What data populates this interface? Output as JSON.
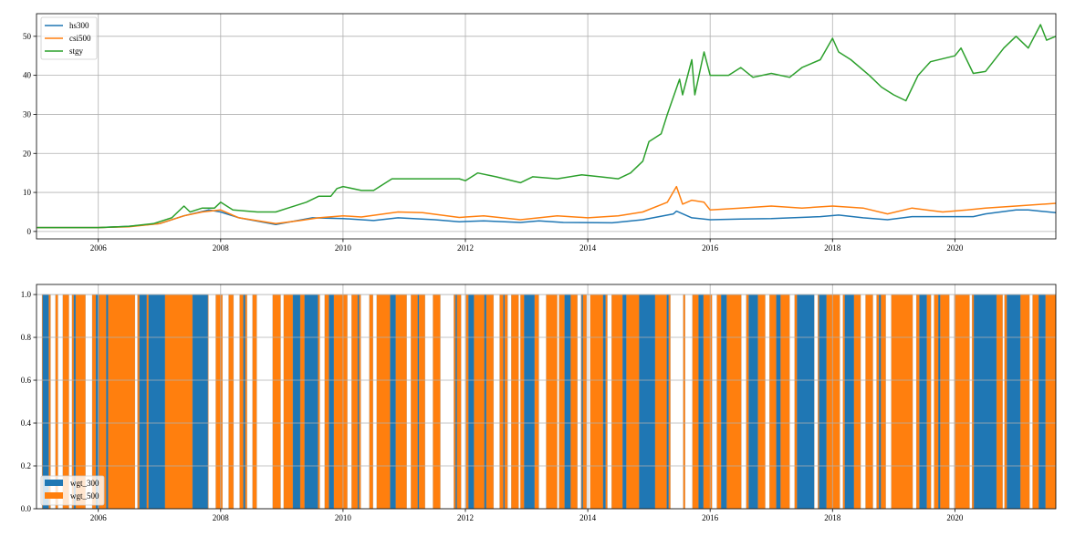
{
  "colors": {
    "hs300": "#1f77b4",
    "csi500": "#ff7f0e",
    "stgy": "#2ca02c",
    "grid": "#b0b0b0"
  },
  "chart_data": [
    {
      "type": "line",
      "title": "",
      "xlabel": "",
      "ylabel": "",
      "xlim": [
        2004.99,
        2021.65
      ],
      "ylim": [
        -1.9,
        55.8
      ],
      "grid": true,
      "legend_placement": "upper-left",
      "xticks": [
        "2006",
        "2008",
        "2010",
        "2012",
        "2014",
        "2016",
        "2018",
        "2020"
      ],
      "yticks": [
        "0",
        "10",
        "20",
        "30",
        "40",
        "50"
      ],
      "series": [
        {
          "name": "hs300",
          "color": "#1f77b4",
          "x": [
            2005,
            2006,
            2006.5,
            2007,
            2007.4,
            2007.8,
            2008,
            2008.3,
            2008.9,
            2009.5,
            2010,
            2010.5,
            2010.9,
            2011.5,
            2011.9,
            2012.3,
            2012.9,
            2013.2,
            2013.6,
            2014.4,
            2014.9,
            2015.4,
            2015.45,
            2015.7,
            2016,
            2016.5,
            2017,
            2017.8,
            2018.1,
            2018.5,
            2018.9,
            2019.3,
            2019.8,
            2020.3,
            2020.5,
            2021,
            2021.2,
            2021.4,
            2021.65
          ],
          "y": [
            1,
            1,
            1.3,
            2,
            4,
            5.5,
            5,
            3.5,
            1.8,
            3.5,
            3.3,
            2.8,
            3.5,
            3,
            2.5,
            2.7,
            2.3,
            2.7,
            2.3,
            2.2,
            3,
            4.5,
            5.2,
            3.5,
            3,
            3.2,
            3.3,
            3.8,
            4.2,
            3.5,
            3,
            3.8,
            3.8,
            3.8,
            4.5,
            5.5,
            5.5,
            5.2,
            4.8
          ]
        },
        {
          "name": "csi500",
          "color": "#ff7f0e",
          "x": [
            2005,
            2006,
            2006.5,
            2007,
            2007.4,
            2007.7,
            2008,
            2008.3,
            2008.9,
            2009.3,
            2009.6,
            2010,
            2010.3,
            2010.9,
            2011.3,
            2011.9,
            2012.3,
            2012.9,
            2013.5,
            2014,
            2014.5,
            2014.9,
            2015.3,
            2015.45,
            2015.55,
            2015.7,
            2015.9,
            2016,
            2016.5,
            2017,
            2017.5,
            2018,
            2018.5,
            2018.9,
            2019.3,
            2019.8,
            2020.2,
            2020.5,
            2021,
            2021.65
          ],
          "y": [
            1,
            1,
            1.2,
            2,
            4,
            5,
            5.5,
            3.5,
            2,
            2.8,
            3.5,
            4,
            3.7,
            5,
            4.8,
            3.6,
            4,
            3,
            4,
            3.5,
            4,
            5,
            7.5,
            11.5,
            7,
            8,
            7.5,
            5.5,
            6,
            6.5,
            6,
            6.5,
            6,
            4.5,
            6,
            5,
            5.5,
            6,
            6.5,
            7.2
          ]
        },
        {
          "name": "stgy",
          "color": "#2ca02c",
          "x": [
            2005,
            2006,
            2006.5,
            2006.9,
            2007.2,
            2007.4,
            2007.5,
            2007.7,
            2007.9,
            2008,
            2008.2,
            2008.6,
            2008.9,
            2009.1,
            2009.4,
            2009.6,
            2009.8,
            2009.9,
            2010,
            2010.3,
            2010.5,
            2010.8,
            2011,
            2011.4,
            2011.9,
            2012,
            2012.2,
            2012.5,
            2012.9,
            2013.1,
            2013.5,
            2013.9,
            2014.2,
            2014.5,
            2014.7,
            2014.9,
            2015,
            2015.2,
            2015.3,
            2015.5,
            2015.55,
            2015.7,
            2015.75,
            2015.9,
            2016,
            2016.3,
            2016.5,
            2016.7,
            2017,
            2017.3,
            2017.5,
            2017.8,
            2018,
            2018.1,
            2018.3,
            2018.6,
            2018.8,
            2019,
            2019.2,
            2019.4,
            2019.6,
            2020,
            2020.1,
            2020.3,
            2020.5,
            2020.8,
            2021,
            2021.2,
            2021.4,
            2021.5,
            2021.65
          ],
          "y": [
            1,
            1,
            1.3,
            2,
            3.5,
            6.5,
            5,
            6,
            6,
            7.5,
            5.5,
            5,
            5,
            6,
            7.5,
            9,
            9,
            11,
            11.5,
            10.5,
            10.5,
            13.5,
            13.5,
            13.5,
            13.5,
            13,
            15,
            14,
            12.5,
            14,
            13.5,
            14.5,
            14,
            13.5,
            15,
            18,
            23,
            25,
            30,
            39,
            35,
            44,
            35,
            46,
            40,
            40,
            42,
            39.5,
            40.5,
            39.5,
            42,
            44,
            49.5,
            46,
            44,
            40,
            37,
            35,
            33.5,
            40,
            43.5,
            45,
            47,
            40.5,
            41,
            47,
            50,
            47,
            53,
            49,
            50
          ]
        }
      ]
    },
    {
      "type": "bar",
      "stacked": true,
      "title": "",
      "xlabel": "",
      "ylabel": "",
      "xlim": [
        2004.99,
        2021.65
      ],
      "ylim": [
        0,
        1.047
      ],
      "grid": true,
      "legend_placement": "lower-left",
      "xticks": [
        "2006",
        "2008",
        "2010",
        "2012",
        "2014",
        "2016",
        "2018",
        "2020"
      ],
      "yticks": [
        "0.0",
        "0.2",
        "0.4",
        "0.6",
        "0.8",
        "1.0"
      ],
      "series": [
        {
          "name": "wgt_300",
          "color": "#1f77b4"
        },
        {
          "name": "wgt_500",
          "color": "#ff7f0e"
        }
      ],
      "invested_periods": [
        [
          2005.08,
          2005.22
        ],
        [
          2005.3,
          2005.34
        ],
        [
          2005.42,
          2005.52
        ],
        [
          2005.57,
          2005.79
        ],
        [
          2005.9,
          2006.6
        ],
        [
          2006.64,
          2007.8
        ],
        [
          2007.92,
          2008.03
        ],
        [
          2008.13,
          2008.21
        ],
        [
          2008.31,
          2008.43
        ],
        [
          2008.52,
          2008.59
        ],
        [
          2008.85,
          2008.98
        ],
        [
          2009.03,
          2009.62
        ],
        [
          2009.7,
          2010.07
        ],
        [
          2010.14,
          2010.29
        ],
        [
          2010.43,
          2010.49
        ],
        [
          2010.55,
          2011.04
        ],
        [
          2011.11,
          2011.34
        ],
        [
          2011.47,
          2011.59
        ],
        [
          2011.81,
          2011.93
        ],
        [
          2012.01,
          2012.46
        ],
        [
          2012.56,
          2012.69
        ],
        [
          2012.75,
          2012.87
        ],
        [
          2012.9,
          2013.2
        ],
        [
          2013.32,
          2013.5
        ],
        [
          2013.53,
          2013.83
        ],
        [
          2013.89,
          2013.98
        ],
        [
          2014.04,
          2014.32
        ],
        [
          2014.39,
          2015.35
        ],
        [
          2015.56,
          2015.59
        ],
        [
          2015.71,
          2016.03
        ],
        [
          2016.11,
          2016.51
        ],
        [
          2016.59,
          2016.9
        ],
        [
          2016.97,
          2017.3
        ],
        [
          2017.38,
          2017.7
        ],
        [
          2017.76,
          2018.12
        ],
        [
          2018.17,
          2018.46
        ],
        [
          2018.54,
          2018.66
        ],
        [
          2018.72,
          2018.87
        ],
        [
          2018.96,
          2019.31
        ],
        [
          2019.37,
          2019.61
        ],
        [
          2019.66,
          2019.91
        ],
        [
          2019.99,
          2020.24
        ],
        [
          2020.28,
          2020.78
        ],
        [
          2020.81,
          2021.22
        ],
        [
          2021.27,
          2021.66
        ]
      ],
      "wgt_300_periods": [
        [
          2005.09,
          2005.19
        ],
        [
          2005.6,
          2005.63
        ],
        [
          2005.96,
          2006.01
        ],
        [
          2006.13,
          2006.16
        ],
        [
          2006.67,
          2006.79
        ],
        [
          2006.82,
          2007.09
        ],
        [
          2007.54,
          2007.79
        ],
        [
          2008.37,
          2008.4
        ],
        [
          2009.18,
          2009.3
        ],
        [
          2009.37,
          2009.59
        ],
        [
          2009.77,
          2009.85
        ],
        [
          2010.24,
          2010.26
        ],
        [
          2010.77,
          2010.86
        ],
        [
          2011.22,
          2011.24
        ],
        [
          2011.84,
          2011.86
        ],
        [
          2012.05,
          2012.14
        ],
        [
          2012.31,
          2012.34
        ],
        [
          2012.62,
          2012.64
        ],
        [
          2012.96,
          2013.13
        ],
        [
          2013.62,
          2013.72
        ],
        [
          2013.9,
          2013.92
        ],
        [
          2014.25,
          2014.29
        ],
        [
          2014.57,
          2014.63
        ],
        [
          2014.84,
          2015.1
        ],
        [
          2015.29,
          2015.32
        ],
        [
          2015.81,
          2015.89
        ],
        [
          2016.18,
          2016.27
        ],
        [
          2016.63,
          2016.78
        ],
        [
          2017.08,
          2017.15
        ],
        [
          2017.42,
          2017.7
        ],
        [
          2017.78,
          2017.9
        ],
        [
          2018.2,
          2018.35
        ],
        [
          2018.76,
          2018.79
        ],
        [
          2019.42,
          2019.54
        ],
        [
          2019.73,
          2019.76
        ],
        [
          2020.31,
          2020.68
        ],
        [
          2020.85,
          2021.07
        ],
        [
          2021.37,
          2021.48
        ]
      ]
    }
  ]
}
